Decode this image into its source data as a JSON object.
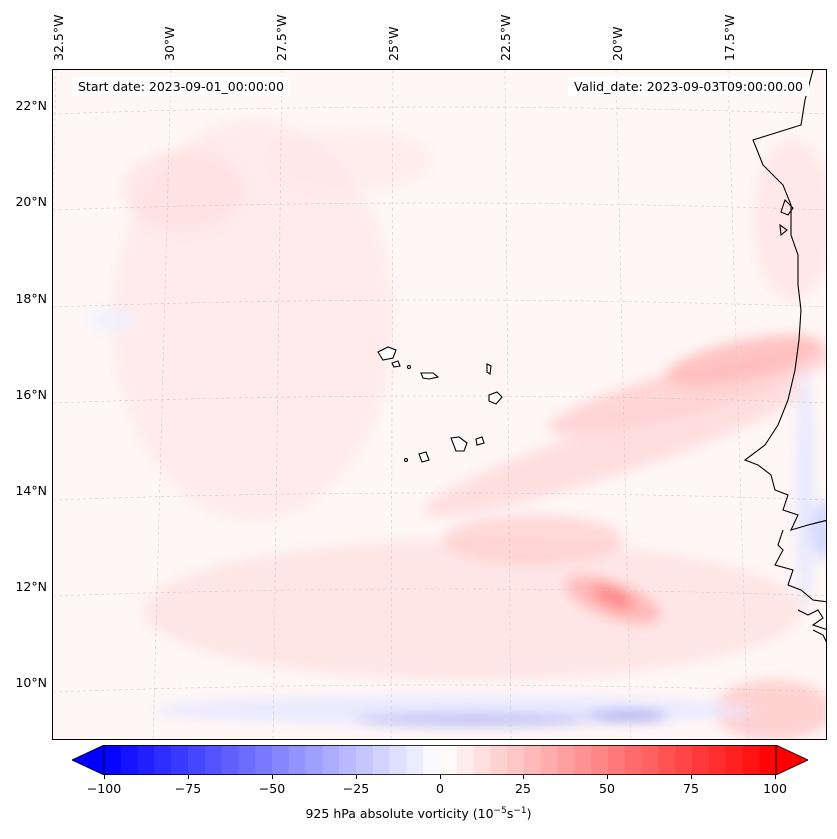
{
  "map": {
    "start_label": "Start date: 2023-09-01_00:00:00",
    "valid_label": "Valid_date: 2023-09-03T09:00:00.00",
    "lon_labels": [
      "32.5°W",
      "30°W",
      "27.5°W",
      "25°W",
      "22.5°W",
      "20°W",
      "17.5°W"
    ],
    "lat_labels": [
      "22°N",
      "20°N",
      "18°N",
      "16°N",
      "14°N",
      "12°N",
      "10°N"
    ],
    "colors": {
      "coastline": "#000000",
      "gridline": "#cccccc",
      "background": "#fff7f6",
      "positive": "#ff0000",
      "negative": "#0000ff"
    }
  },
  "colorbar": {
    "label_main": "925 hPa absolute vorticity (10",
    "label_exp1": "−5",
    "label_mid": "s",
    "label_exp2": "−1",
    "label_end": ")",
    "ticks": [
      "−100",
      "−75",
      "−50",
      "−25",
      "0",
      "25",
      "50",
      "75",
      "100"
    ],
    "min": -100,
    "max": 100,
    "levels": 40
  }
}
